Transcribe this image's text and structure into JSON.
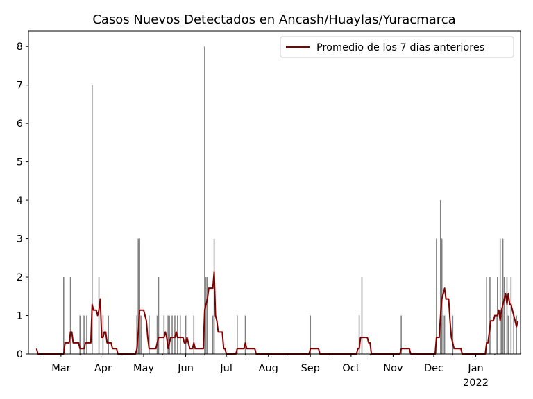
{
  "chart_data": {
    "type": "bar",
    "title": "Casos Nuevos Detectados en Ancash/Huaylas/Yuracmarca",
    "xlabel": "",
    "ylabel": "",
    "ylim": [
      0,
      8.4
    ],
    "yticks": [
      0,
      1,
      2,
      3,
      4,
      5,
      6,
      7,
      8
    ],
    "xlim": [
      "2021-02-05",
      "2022-02-03"
    ],
    "xticks": [
      {
        "date": "2021-03-01",
        "label": "Mar"
      },
      {
        "date": "2021-04-01",
        "label": "Apr"
      },
      {
        "date": "2021-05-01",
        "label": "May"
      },
      {
        "date": "2021-06-01",
        "label": "Jun"
      },
      {
        "date": "2021-07-01",
        "label": "Jul"
      },
      {
        "date": "2021-08-01",
        "label": "Aug"
      },
      {
        "date": "2021-09-01",
        "label": "Sep"
      },
      {
        "date": "2021-10-01",
        "label": "Oct"
      },
      {
        "date": "2021-11-01",
        "label": "Nov"
      },
      {
        "date": "2021-12-01",
        "label": "Dec"
      },
      {
        "date": "2022-01-01",
        "label": "Jan"
      }
    ],
    "year_label": {
      "date": "2022-01-01",
      "label": "2022"
    },
    "grid": false,
    "legend_position": "top-right",
    "series": [
      {
        "kind": "bar",
        "color": "#808080",
        "dates": [
          "2021-03-03",
          "2021-03-08",
          "2021-03-15",
          "2021-03-18",
          "2021-03-20",
          "2021-03-24",
          "2021-03-29",
          "2021-04-01",
          "2021-04-05",
          "2021-04-26",
          "2021-04-27",
          "2021-04-28",
          "2021-04-29",
          "2021-05-05",
          "2021-05-11",
          "2021-05-12",
          "2021-05-16",
          "2021-05-19",
          "2021-05-20",
          "2021-05-22",
          "2021-05-24",
          "2021-05-26",
          "2021-05-28",
          "2021-06-01",
          "2021-06-07",
          "2021-06-15",
          "2021-06-16",
          "2021-06-17",
          "2021-06-21",
          "2021-06-22",
          "2021-07-09",
          "2021-07-15",
          "2021-09-01",
          "2021-10-07",
          "2021-10-09",
          "2021-11-07",
          "2021-12-03",
          "2021-12-06",
          "2021-12-07",
          "2021-12-08",
          "2021-12-09",
          "2021-12-15",
          "2022-01-09",
          "2022-01-11",
          "2022-01-12",
          "2022-01-16",
          "2022-01-17",
          "2022-01-19",
          "2022-01-20",
          "2022-01-21",
          "2022-01-22",
          "2022-01-24",
          "2022-01-25",
          "2022-01-27",
          "2022-01-29",
          "2022-01-31"
        ],
        "values": [
          2,
          2,
          1,
          1,
          1,
          7,
          2,
          1,
          1,
          1,
          3,
          3,
          1,
          1,
          1,
          2,
          1,
          1,
          1,
          1,
          1,
          1,
          1,
          1,
          1,
          8,
          2,
          2,
          1,
          3,
          1,
          1,
          1,
          1,
          2,
          1,
          3,
          4,
          3,
          1,
          1,
          1,
          2,
          2,
          2,
          1,
          2,
          3,
          1,
          3,
          2,
          2,
          1,
          2,
          1,
          1
        ]
      },
      {
        "kind": "line",
        "name": "Promedio de los 7 dias anteriores",
        "color": "#800000",
        "points": [
          [
            "2021-02-11",
            0.14
          ],
          [
            "2021-02-12",
            0.0
          ],
          [
            "2021-03-03",
            0.0
          ],
          [
            "2021-03-04",
            0.29
          ],
          [
            "2021-03-07",
            0.29
          ],
          [
            "2021-03-08",
            0.57
          ],
          [
            "2021-03-09",
            0.57
          ],
          [
            "2021-03-10",
            0.29
          ],
          [
            "2021-03-14",
            0.29
          ],
          [
            "2021-03-15",
            0.14
          ],
          [
            "2021-03-18",
            0.14
          ],
          [
            "2021-03-19",
            0.29
          ],
          [
            "2021-03-23",
            0.29
          ],
          [
            "2021-03-24",
            1.29
          ],
          [
            "2021-03-25",
            1.14
          ],
          [
            "2021-03-27",
            1.14
          ],
          [
            "2021-03-28",
            1.0
          ],
          [
            "2021-03-29",
            1.14
          ],
          [
            "2021-03-30",
            1.43
          ],
          [
            "2021-03-31",
            0.43
          ],
          [
            "2021-04-01",
            0.43
          ],
          [
            "2021-04-02",
            0.57
          ],
          [
            "2021-04-03",
            0.57
          ],
          [
            "2021-04-04",
            0.29
          ],
          [
            "2021-04-07",
            0.29
          ],
          [
            "2021-04-08",
            0.14
          ],
          [
            "2021-04-11",
            0.14
          ],
          [
            "2021-04-12",
            0.0
          ],
          [
            "2021-04-25",
            0.0
          ],
          [
            "2021-04-26",
            0.14
          ],
          [
            "2021-04-27",
            0.57
          ],
          [
            "2021-04-28",
            1.14
          ],
          [
            "2021-05-01",
            1.14
          ],
          [
            "2021-05-02",
            1.0
          ],
          [
            "2021-05-03",
            0.86
          ],
          [
            "2021-05-04",
            0.43
          ],
          [
            "2021-05-05",
            0.14
          ],
          [
            "2021-05-10",
            0.14
          ],
          [
            "2021-05-11",
            0.29
          ],
          [
            "2021-05-12",
            0.43
          ],
          [
            "2021-05-16",
            0.43
          ],
          [
            "2021-05-17",
            0.57
          ],
          [
            "2021-05-18",
            0.43
          ],
          [
            "2021-05-19",
            0.14
          ],
          [
            "2021-05-20",
            0.29
          ],
          [
            "2021-05-21",
            0.43
          ],
          [
            "2021-05-24",
            0.43
          ],
          [
            "2021-05-25",
            0.57
          ],
          [
            "2021-05-26",
            0.43
          ],
          [
            "2021-05-30",
            0.43
          ],
          [
            "2021-05-31",
            0.29
          ],
          [
            "2021-06-01",
            0.29
          ],
          [
            "2021-06-02",
            0.43
          ],
          [
            "2021-06-03",
            0.29
          ],
          [
            "2021-06-04",
            0.14
          ],
          [
            "2021-06-06",
            0.14
          ],
          [
            "2021-06-07",
            0.29
          ],
          [
            "2021-06-08",
            0.14
          ],
          [
            "2021-06-14",
            0.14
          ],
          [
            "2021-06-15",
            1.14
          ],
          [
            "2021-06-17",
            1.43
          ],
          [
            "2021-06-18",
            1.71
          ],
          [
            "2021-06-21",
            1.71
          ],
          [
            "2021-06-22",
            2.14
          ],
          [
            "2021-06-23",
            1.0
          ],
          [
            "2021-06-24",
            0.86
          ],
          [
            "2021-06-25",
            0.57
          ],
          [
            "2021-06-28",
            0.57
          ],
          [
            "2021-06-29",
            0.14
          ],
          [
            "2021-06-30",
            0.14
          ],
          [
            "2021-07-01",
            0.0
          ],
          [
            "2021-07-08",
            0.0
          ],
          [
            "2021-07-09",
            0.14
          ],
          [
            "2021-07-14",
            0.14
          ],
          [
            "2021-07-15",
            0.29
          ],
          [
            "2021-07-16",
            0.14
          ],
          [
            "2021-07-22",
            0.14
          ],
          [
            "2021-07-23",
            0.0
          ],
          [
            "2021-08-31",
            0.0
          ],
          [
            "2021-09-01",
            0.14
          ],
          [
            "2021-09-07",
            0.14
          ],
          [
            "2021-09-08",
            0.0
          ],
          [
            "2021-10-05",
            0.0
          ],
          [
            "2021-10-06",
            0.14
          ],
          [
            "2021-10-07",
            0.14
          ],
          [
            "2021-10-08",
            0.43
          ],
          [
            "2021-10-13",
            0.43
          ],
          [
            "2021-10-14",
            0.29
          ],
          [
            "2021-10-15",
            0.29
          ],
          [
            "2021-10-16",
            0.0
          ],
          [
            "2021-11-06",
            0.0
          ],
          [
            "2021-11-07",
            0.14
          ],
          [
            "2021-11-13",
            0.14
          ],
          [
            "2021-11-14",
            0.0
          ],
          [
            "2021-12-02",
            0.0
          ],
          [
            "2021-12-03",
            0.43
          ],
          [
            "2021-12-05",
            0.43
          ],
          [
            "2021-12-06",
            1.0
          ],
          [
            "2021-12-07",
            1.43
          ],
          [
            "2021-12-09",
            1.71
          ],
          [
            "2021-12-10",
            1.43
          ],
          [
            "2021-12-12",
            1.43
          ],
          [
            "2021-12-13",
            0.86
          ],
          [
            "2021-12-14",
            0.43
          ],
          [
            "2021-12-15",
            0.29
          ],
          [
            "2021-12-16",
            0.14
          ],
          [
            "2021-12-21",
            0.14
          ],
          [
            "2021-12-22",
            0.0
          ],
          [
            "2022-01-08",
            0.0
          ],
          [
            "2022-01-09",
            0.29
          ],
          [
            "2022-01-10",
            0.29
          ],
          [
            "2022-01-11",
            0.57
          ],
          [
            "2022-01-12",
            0.86
          ],
          [
            "2022-01-14",
            0.86
          ],
          [
            "2022-01-15",
            1.0
          ],
          [
            "2022-01-17",
            1.0
          ],
          [
            "2022-01-18",
            1.14
          ],
          [
            "2022-01-19",
            0.86
          ],
          [
            "2022-01-20",
            1.14
          ],
          [
            "2022-01-22",
            1.43
          ],
          [
            "2022-01-23",
            1.57
          ],
          [
            "2022-01-24",
            1.29
          ],
          [
            "2022-01-25",
            1.57
          ],
          [
            "2022-01-26",
            1.29
          ],
          [
            "2022-01-27",
            1.29
          ],
          [
            "2022-01-28",
            1.14
          ],
          [
            "2022-01-29",
            1.0
          ],
          [
            "2022-01-30",
            0.86
          ],
          [
            "2022-01-31",
            0.71
          ],
          [
            "2022-02-01",
            0.86
          ]
        ]
      }
    ]
  }
}
